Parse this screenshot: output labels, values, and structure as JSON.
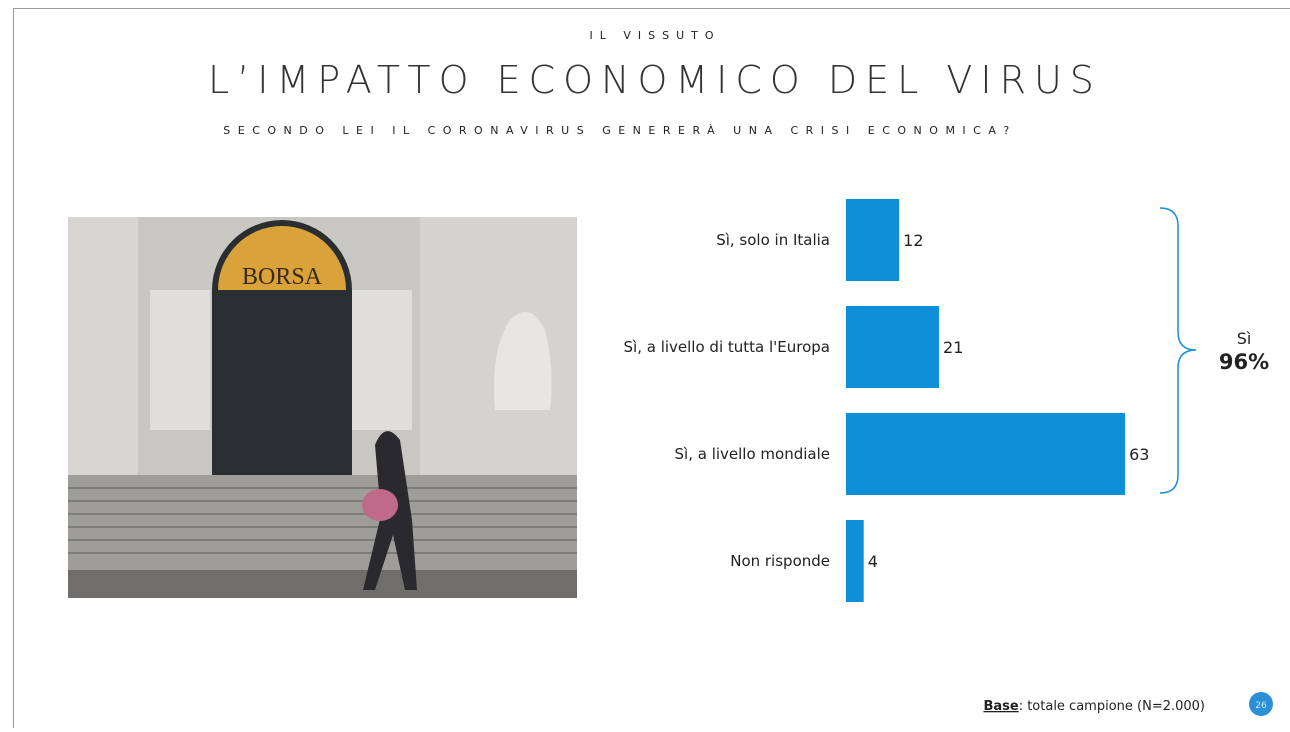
{
  "chart_data": {
    "type": "bar",
    "orientation": "horizontal",
    "kicker": "IL VISSUTO",
    "title": "L’IMPATTO ECONOMICO DEL VIRUS",
    "subtitle": "SECONDO LEI IL CORONAVIRUS GENERERÀ UNA CRISI ECONOMICA?",
    "categories": [
      "Sì, solo in Italia",
      "Sì, a livello di tutta l'Europa",
      "Sì, a livello mondiale",
      "Non risponde"
    ],
    "values": [
      12,
      21,
      63,
      4
    ],
    "color": "#0f8fd8",
    "bracket": {
      "label": "Sì",
      "value": 96,
      "value_label": "96%"
    },
    "photo_text": "BORSA",
    "footnote": {
      "bold": "Base",
      "text": ": totale campione (N=2.000)"
    },
    "page_number": "26"
  }
}
